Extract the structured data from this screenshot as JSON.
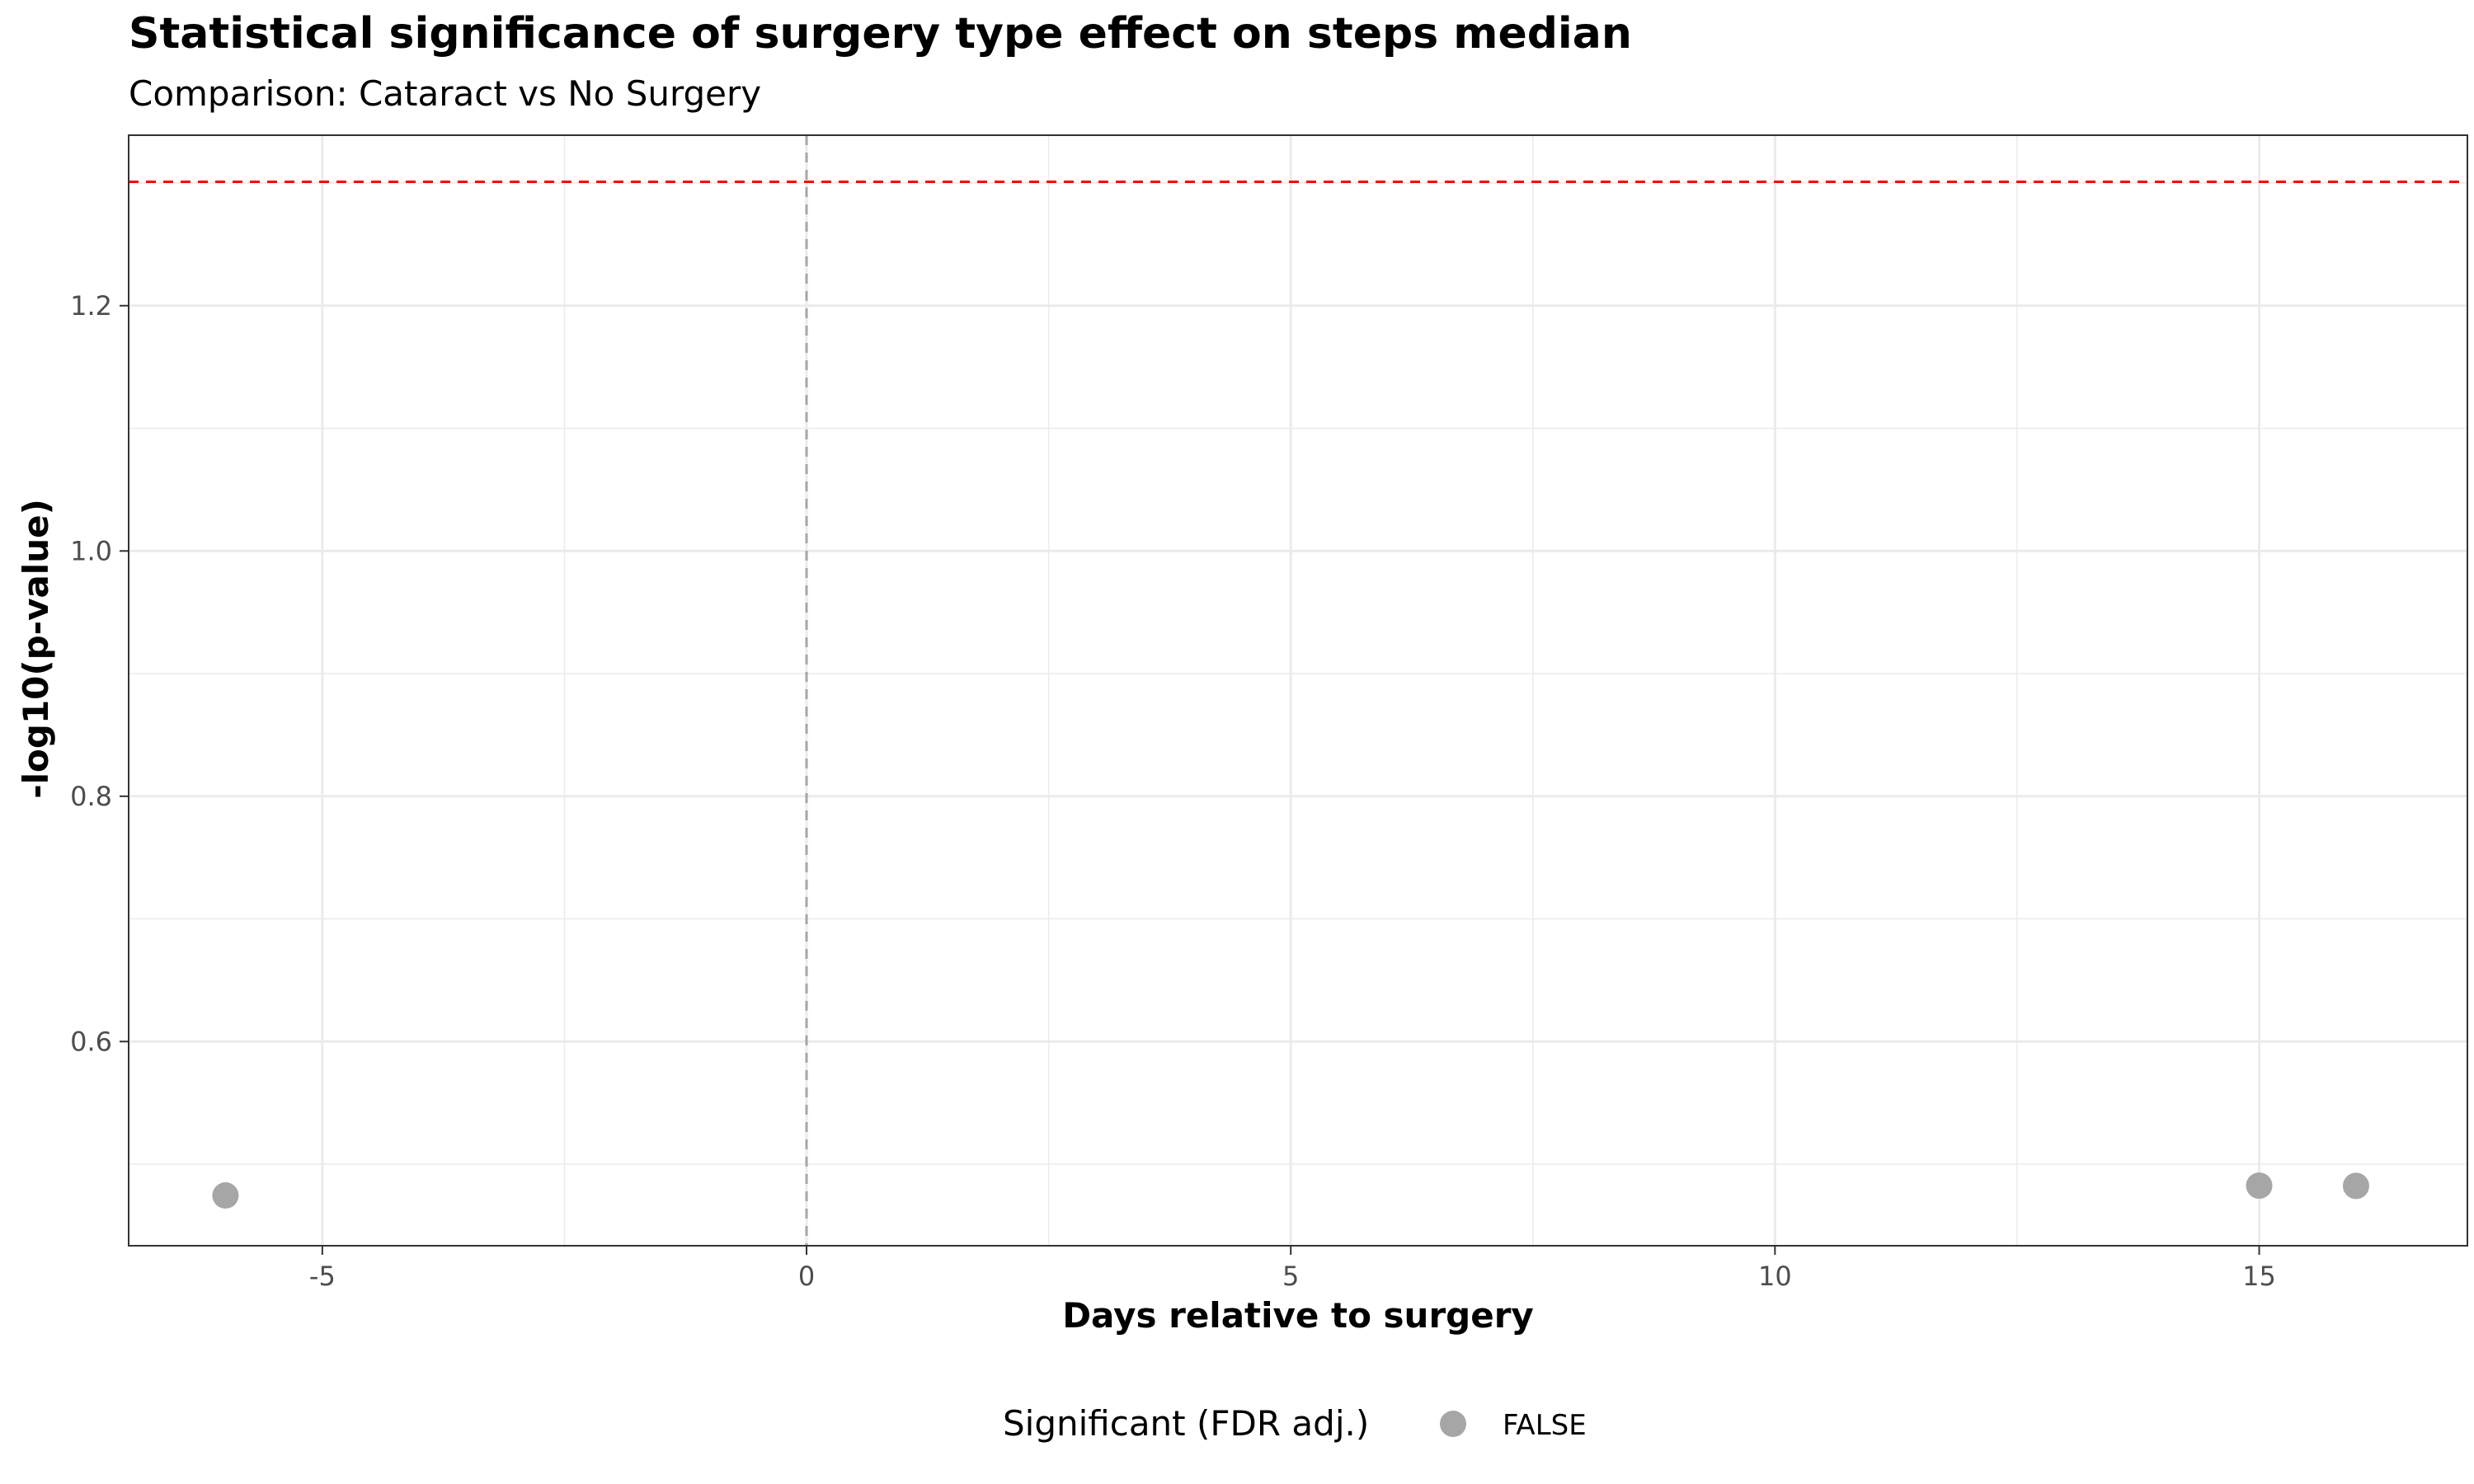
{
  "chart_data": {
    "type": "scatter",
    "title": "Statistical significance of surgery type effect on steps median",
    "subtitle": "Comparison: Cataract vs No Surgery",
    "xlabel": "Days relative to surgery",
    "ylabel": "-log10(p-value)",
    "xlim": [
      -7,
      17.15
    ],
    "ylim": [
      0.4335,
      1.339
    ],
    "x_ticks": [
      -5,
      0,
      5,
      10,
      15
    ],
    "y_ticks": [
      0.6,
      0.8,
      1.0,
      1.2
    ],
    "x_tick_labels": [
      "-5",
      "0",
      "5",
      "10",
      "15"
    ],
    "y_tick_labels": [
      "0.6",
      "0.8",
      "1.0",
      "1.2"
    ],
    "grid": true,
    "points": [
      {
        "x": -6,
        "y": 0.4745,
        "significant": "FALSE"
      },
      {
        "x": 15,
        "y": 0.4825,
        "significant": "FALSE"
      },
      {
        "x": 16,
        "y": 0.4823,
        "significant": "FALSE"
      }
    ],
    "reference_lines": {
      "significance_threshold_y": 1.301,
      "surgery_day_x": 0
    },
    "legend": {
      "title": "Significant (FDR adj.)",
      "placement": "bottom",
      "entries": [
        {
          "label": "FALSE",
          "color": "#a6a6a6"
        }
      ]
    },
    "colors": {
      "point": "#a6a6a6",
      "threshold_line": "#ff0000",
      "zero_line": "#a6a6a6",
      "grid": "#ebebeb",
      "panel_border": "#333333"
    }
  }
}
